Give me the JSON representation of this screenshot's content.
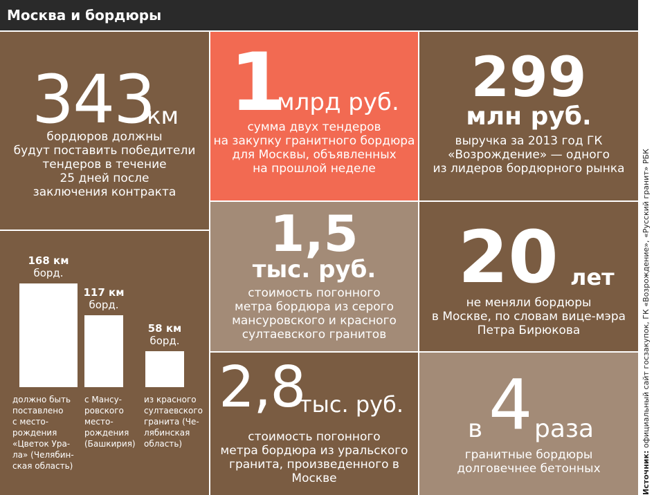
{
  "header": {
    "title": "Москва и бордюры"
  },
  "tiles": {
    "t1": {
      "number": "343",
      "unit": "км",
      "caption": [
        "бордюров должны",
        "будут поставить победители",
        "тендеров в течение",
        "25 дней после",
        "заключения контракта"
      ]
    },
    "t2": {
      "number": "1",
      "unit": "млрд руб.",
      "caption": [
        "сумма двух тендеров",
        "на закупку гранитного бордюра",
        "для Москвы, объявленных",
        "на прошлой неделе"
      ]
    },
    "t3": {
      "number": "299",
      "unit": "млн руб.",
      "caption": [
        "выручка за 2013 год ГК",
        "«Возрождение» — одного",
        "из лидеров бордюрного рынка"
      ]
    },
    "t5": {
      "number": "1,5",
      "unit": "тыс. руб.",
      "caption": [
        "стоимость погонного",
        "метра бордюра из серого",
        "мансуровского и красного",
        "султаевского гранитов"
      ]
    },
    "t6": {
      "number": "20",
      "unit": "лет",
      "caption": [
        "не меняли бордюры",
        "в Москве, по словам вице-мэра",
        "Петра Бирюкова"
      ]
    },
    "t7": {
      "number": "2,8",
      "unit": "тыс. руб.",
      "caption": [
        "стоимость погонного",
        "метра бордюра из уральского",
        "гранита, произведенного в Москве"
      ]
    },
    "t8": {
      "prefix": "в",
      "number": "4",
      "unit": "раза",
      "caption": [
        "гранитные бордюры",
        "долговечнее бетонных"
      ]
    }
  },
  "chart_data": {
    "type": "bar",
    "categories": [
      "Цветок Урала",
      "Мансуровское",
      "Султаевское"
    ],
    "values": [
      168,
      117,
      58
    ],
    "value_labels": [
      [
        "168 км",
        "борд."
      ],
      [
        "117 км",
        "борд."
      ],
      [
        "58 км",
        "борд."
      ]
    ],
    "captions": [
      [
        "должно быть",
        "поставлено",
        "с место-",
        "рождения",
        "«Цветок Ура-",
        "ла» (Челябин-",
        "ская область)"
      ],
      [
        "с Мансу-",
        "ровского",
        "место-",
        "рождения",
        "(Башкирия)"
      ],
      [
        "из красного",
        "султаевского",
        "гранита (Че-",
        "лябинская",
        "область)"
      ]
    ],
    "colors": {
      "bar": "#ffffff",
      "background": "#7a5c42"
    }
  },
  "source": {
    "label": "Источник:",
    "text": " официальный сайт госзакупок, ГК «Возрождение», «Русский гранит» РБК"
  },
  "colors": {
    "dark_brown": "#7a5c42",
    "light_brown": "#a38b77",
    "coral": "#f26a52",
    "header": "#2a2a2a"
  }
}
